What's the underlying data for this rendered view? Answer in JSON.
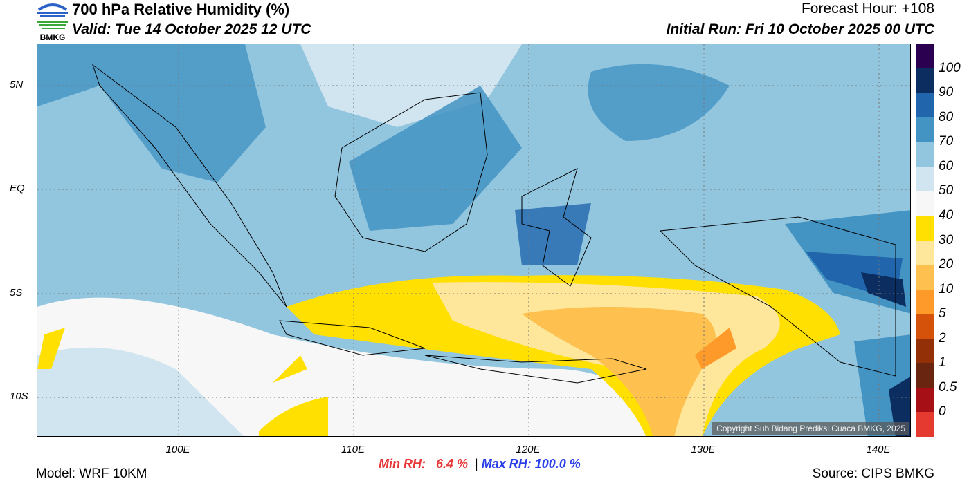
{
  "header": {
    "title": "700 hPa Relative Humidity (%)",
    "valid": "Valid: Tue 14 October 2025 12 UTC",
    "forecast_hour": "Forecast Hour: +108",
    "initial_run": "Initial Run: Fri 10 October 2025 00 UTC"
  },
  "logo": {
    "text": "BMKG"
  },
  "map": {
    "lat_labels": [
      "5N",
      "EQ",
      "5S",
      "10S"
    ],
    "lon_labels": [
      "100E",
      "110E",
      "120E",
      "130E",
      "140E"
    ],
    "copyright": "Copyright Sub Bidang Prediksi Cuaca BMKG, 2025"
  },
  "colorbar": {
    "labels": [
      "100",
      "90",
      "80",
      "70",
      "60",
      "50",
      "40",
      "30",
      "20",
      "10",
      "5",
      "2",
      "1",
      "0.5",
      "0"
    ],
    "colors": [
      "#2c0050",
      "#0c2d5f",
      "#2166ac",
      "#4393c3",
      "#92c5de",
      "#d1e5f0",
      "#f7f7f7",
      "#ffe000",
      "#fee69a",
      "#fec04e",
      "#fd9a2a",
      "#d4520a",
      "#933008",
      "#6a2510",
      "#a50f15",
      "#e53a30"
    ]
  },
  "stats": {
    "min_label": "Min RH:",
    "min_value": "6.4 %",
    "sep": "|",
    "max_label": "Max RH: 100.0 %"
  },
  "footer": {
    "model": "Model: WRF 10KM",
    "source": "Source: CIPS BMKG"
  }
}
